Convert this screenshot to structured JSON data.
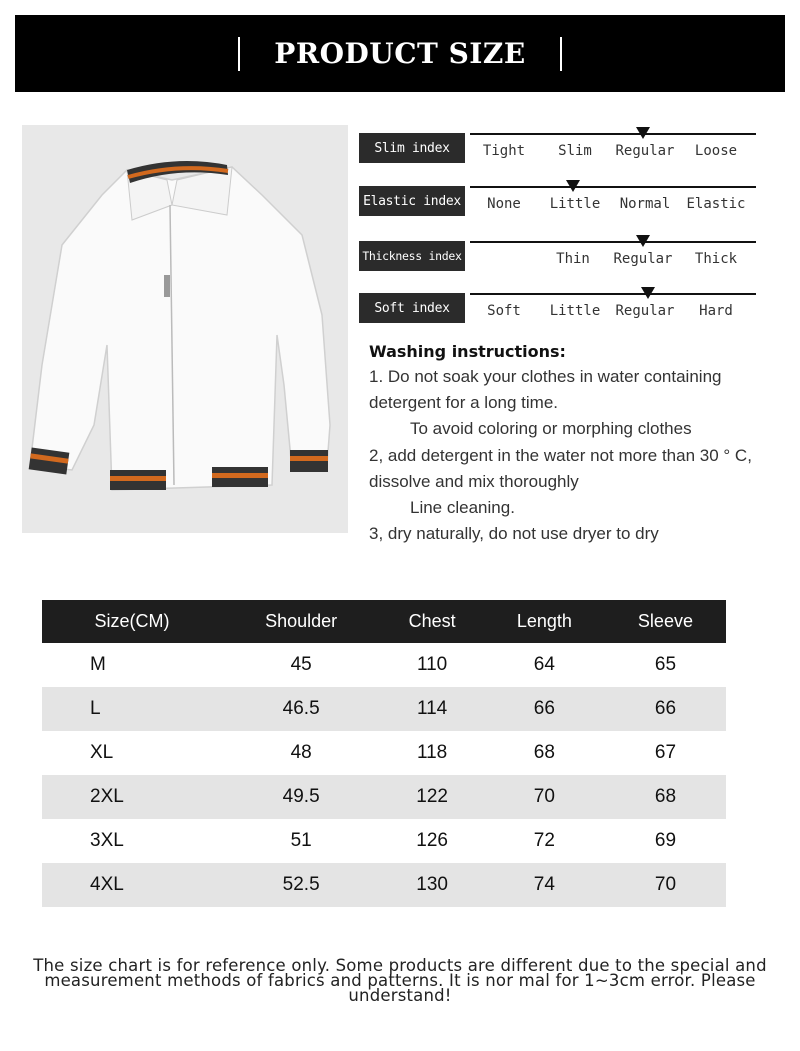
{
  "header": {
    "title": "PRODUCT SIZE"
  },
  "indices": [
    {
      "label": "Slim index",
      "options": [
        "Tight",
        "Slim",
        "Regular",
        "Loose"
      ],
      "marker_at": "Regular"
    },
    {
      "label": "Elastic index",
      "options": [
        "None",
        "Little",
        "Normal",
        "Elastic"
      ],
      "marker_at": "Little"
    },
    {
      "label": "Thickness index",
      "options": [
        "",
        "Thin",
        "Regular",
        "Thick"
      ],
      "marker_at": "Regular"
    },
    {
      "label": "Soft index",
      "options": [
        "Soft",
        "Little",
        "Regular",
        "Hard"
      ],
      "marker_at": "Regular"
    }
  ],
  "washing": {
    "title": "Washing instructions:",
    "lines": [
      "1. Do not soak your clothes in water containing detergent for a long time.",
      "To avoid coloring or morphing clothes",
      "2, add detergent in the water not more than 30 ° C, dissolve and mix thoroughly",
      "Line cleaning.",
      "3, dry naturally, do not use dryer to dry"
    ]
  },
  "size_table": {
    "headers": [
      "Size(CM)",
      "Shoulder",
      "Chest",
      "Length",
      "Sleeve"
    ],
    "rows": [
      [
        "M",
        "45",
        "110",
        "64",
        "65"
      ],
      [
        "L",
        "46.5",
        "114",
        "66",
        "66"
      ],
      [
        "XL",
        "48",
        "118",
        "68",
        "67"
      ],
      [
        "2XL",
        "49.5",
        "122",
        "70",
        "68"
      ],
      [
        "3XL",
        "51",
        "126",
        "72",
        "69"
      ],
      [
        "4XL",
        "52.5",
        "130",
        "74",
        "70"
      ]
    ]
  },
  "note": "The size chart is for reference only. Some products are different due to the special and measurement methods of fabrics and patterns. It is nor mal for 1~3cm error. Please understand!"
}
